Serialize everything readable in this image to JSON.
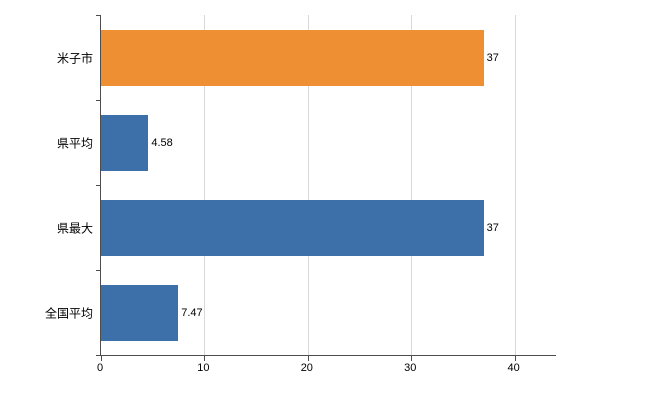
{
  "chart_data": {
    "type": "bar",
    "orientation": "horizontal",
    "title": "",
    "xlabel": "",
    "ylabel": "",
    "categories": [
      "米子市",
      "県平均",
      "県最大",
      "全国平均"
    ],
    "values": [
      37,
      4.58,
      37,
      7.47
    ],
    "value_labels": [
      "37",
      "4.58",
      "37",
      "7.47"
    ],
    "bar_colors": [
      "#ee8f33",
      "#3d6fa8",
      "#3d6fa8",
      "#3d6fa8"
    ],
    "xlim": [
      0,
      44
    ],
    "xticks": [
      0,
      10,
      20,
      30,
      40
    ],
    "xtick_labels": [
      "0",
      "10",
      "20",
      "30",
      "40"
    ],
    "grid": "vertical",
    "legend": "none"
  },
  "colors": {
    "orange": "#ee8f33",
    "blue": "#3d6fa8",
    "axis": "#4d4d4d",
    "gridline": "#d9d9d9",
    "background": "#ffffff",
    "text": "#000000"
  }
}
